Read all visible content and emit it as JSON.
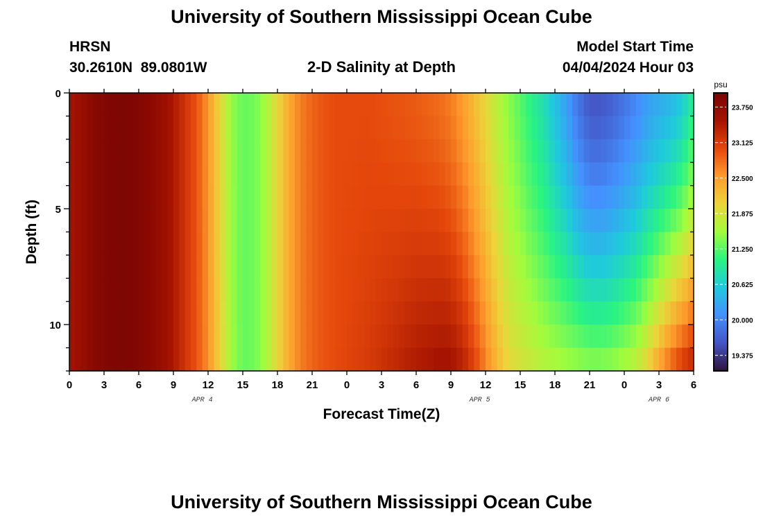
{
  "page": {
    "title": "University of Southern Mississippi Ocean Cube",
    "footer_title": "University of Southern Mississippi Ocean Cube",
    "station": {
      "name": "HRSN",
      "coords": "30.2610N  89.0801W"
    },
    "plot_title": "2-D Salinity at Depth",
    "model_start": {
      "label": "Model Start Time",
      "value": "04/04/2024 Hour 03"
    }
  },
  "chart_data": {
    "type": "heatmap",
    "title": "2-D Salinity at Depth",
    "xlabel": "Forecast Time(Z)",
    "ylabel": "Depth (ft)",
    "x_ticks": [
      "0",
      "3",
      "6",
      "9",
      "12",
      "15",
      "18",
      "21",
      "0",
      "3",
      "6",
      "9",
      "12",
      "15",
      "18",
      "21",
      "0",
      "3",
      "6"
    ],
    "x_tick_hours": [
      0,
      3,
      6,
      9,
      12,
      15,
      18,
      21,
      24,
      27,
      30,
      33,
      36,
      39,
      42,
      45,
      48,
      51,
      54
    ],
    "x_range_hours": [
      0,
      54
    ],
    "date_labels": [
      {
        "label": "APR 4",
        "hour": 11.5
      },
      {
        "label": "APR 5",
        "hour": 35.5
      },
      {
        "label": "APR 6",
        "hour": 51
      }
    ],
    "y_ticks": [
      "0",
      "5",
      "10"
    ],
    "y_tick_values": [
      0,
      5,
      10
    ],
    "y_range_ft": [
      0,
      12
    ],
    "colorbar": {
      "unit": "psu",
      "ticks": [
        "23.750",
        "23.125",
        "22.500",
        "21.875",
        "21.250",
        "20.625",
        "20.000",
        "19.375"
      ],
      "tick_values": [
        23.75,
        23.125,
        22.5,
        21.875,
        21.25,
        20.625,
        20.0,
        19.375
      ],
      "range": [
        19.1,
        24.0
      ],
      "colormap": [
        "#30123b",
        "#4454c4",
        "#4490fe",
        "#1fc9dd",
        "#2af481",
        "#a2fc3c",
        "#ecd43a",
        "#fe9b2d",
        "#e5470b",
        "#a51301",
        "#7a0403"
      ]
    },
    "time_profile_hours": [
      0,
      1,
      2,
      3,
      4,
      5,
      6,
      7,
      8,
      9,
      10,
      11,
      12,
      13,
      14,
      15,
      16,
      17,
      18,
      19,
      20,
      21,
      22,
      23,
      24,
      26,
      28,
      30,
      32,
      33,
      34,
      35,
      36,
      37,
      38,
      39,
      40,
      41,
      42,
      43,
      44,
      45,
      46,
      47,
      48,
      49,
      50,
      51,
      52,
      53,
      54
    ],
    "surface_salinity_psu": [
      23.5,
      23.65,
      23.8,
      23.9,
      23.95,
      23.95,
      23.9,
      23.8,
      23.65,
      23.45,
      23.2,
      22.95,
      22.55,
      22.0,
      21.5,
      21.3,
      21.35,
      21.6,
      22.0,
      22.4,
      22.7,
      22.85,
      22.95,
      23.0,
      23.0,
      23.0,
      22.95,
      22.9,
      22.8,
      22.7,
      22.5,
      22.25,
      22.0,
      21.7,
      21.45,
      21.25,
      21.0,
      20.8,
      20.5,
      20.2,
      19.85,
      19.6,
      19.6,
      19.7,
      19.85,
      20.0,
      20.2,
      20.3,
      20.4,
      20.6,
      21.0
    ],
    "bottom_salinity_psu": [
      23.5,
      23.65,
      23.8,
      23.9,
      23.95,
      23.95,
      23.9,
      23.8,
      23.65,
      23.45,
      23.2,
      22.95,
      22.6,
      22.05,
      21.55,
      21.3,
      21.35,
      21.6,
      22.0,
      22.4,
      22.7,
      22.85,
      22.95,
      23.0,
      23.05,
      23.15,
      23.3,
      23.45,
      23.55,
      23.55,
      23.4,
      23.1,
      22.7,
      22.3,
      22.0,
      21.9,
      21.8,
      21.7,
      21.65,
      21.6,
      21.55,
      21.5,
      21.5,
      21.55,
      21.65,
      21.8,
      22.1,
      22.5,
      22.9,
      23.2,
      23.4
    ]
  }
}
